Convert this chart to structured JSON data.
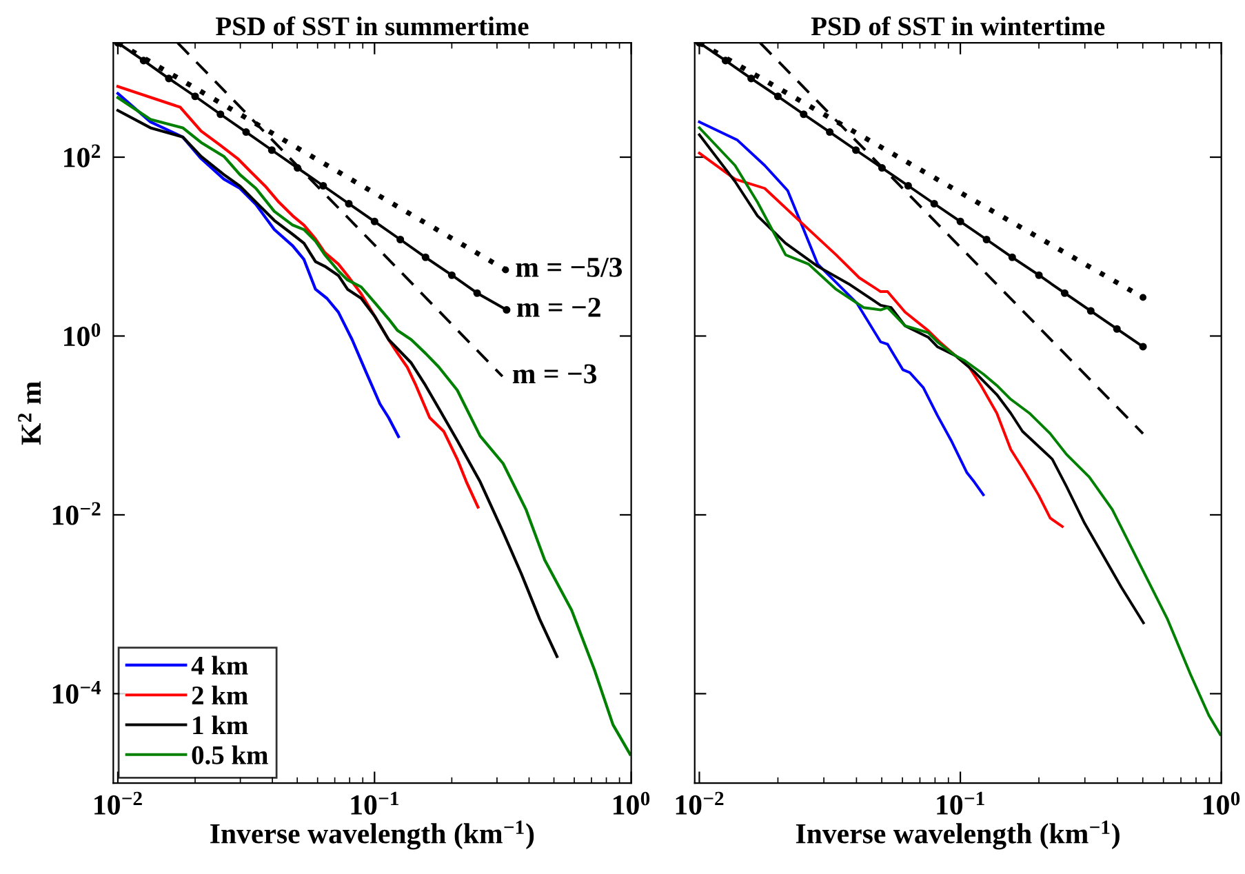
{
  "chart_data": [
    {
      "type": "line",
      "title": "PSD of SST in summertime",
      "xlabel": "Inverse wavelength (km$^{−1}$)",
      "ylabel": "K$^{2}$ m",
      "log": "xy",
      "legend": "bottom left",
      "xlim": [
        0.0096,
        1
      ],
      "ylim": [
        1e-05,
        1900
      ],
      "xticks": [
        {
          "value": 0.01,
          "label": "10$^{−2}$"
        },
        {
          "value": 0.1,
          "label": "10$^{−1}$"
        },
        {
          "value": 1,
          "label": "10$^{0}$"
        }
      ],
      "yticks": [
        {
          "value": 0.0001,
          "label": "10$^{−4}$"
        },
        {
          "value": 0.01,
          "label": "10$^{−2}$"
        },
        {
          "value": 1,
          "label": "10$^{0}$"
        },
        {
          "value": 100,
          "label": "10$^{2}$"
        }
      ],
      "annotations": [
        {
          "text": "m = −5/3",
          "x": 0.324,
          "y": 5.5
        },
        {
          "text": "m = −2",
          "x": 0.327,
          "y": 1.96
        },
        {
          "text": "m = −3",
          "x": 0.315,
          "y": 0.354
        }
      ],
      "series": [
        {
          "name": "4 km",
          "color": "#0000ff",
          "x": [
            0.01,
            0.0134,
            0.0179,
            0.0211,
            0.0259,
            0.0299,
            0.0345,
            0.0407,
            0.048,
            0.0531,
            0.0589,
            0.0653,
            0.0723,
            0.0818,
            0.0925,
            0.105,
            0.1135,
            0.124
          ],
          "values": [
            516,
            248,
            168,
            96.5,
            56.8,
            44.8,
            29.6,
            15.5,
            10.2,
            7.18,
            3.33,
            2.63,
            1.85,
            0.91,
            0.4,
            0.174,
            0.122,
            0.075
          ]
        },
        {
          "name": "2 km",
          "color": "#ff0000",
          "x": [
            0.01,
            0.0175,
            0.0211,
            0.0249,
            0.0293,
            0.0331,
            0.0375,
            0.0424,
            0.048,
            0.0531,
            0.0589,
            0.064,
            0.0723,
            0.0785,
            0.0887,
            0.1005,
            0.1135,
            0.123,
            0.134,
            0.145,
            0.164,
            0.186,
            0.21,
            0.228,
            0.253
          ],
          "values": [
            617,
            362,
            196,
            138,
            96.5,
            67.8,
            47.5,
            31.4,
            22.1,
            17.4,
            12.2,
            8.57,
            6.38,
            4.75,
            2.96,
            1.64,
            0.91,
            0.64,
            0.45,
            0.28,
            0.122,
            0.086,
            0.042,
            0.0234,
            0.0122
          ]
        },
        {
          "name": "1 km",
          "color": "#000000",
          "x": [
            0.01,
            0.0134,
            0.0179,
            0.0211,
            0.0259,
            0.0299,
            0.0345,
            0.0407,
            0.048,
            0.0531,
            0.0589,
            0.064,
            0.0723,
            0.0785,
            0.0887,
            0.1005,
            0.1135,
            0.123,
            0.139,
            0.158,
            0.178,
            0.21,
            0.258,
            0.317,
            0.373,
            0.44,
            0.514
          ],
          "values": [
            333,
            213,
            168,
            102,
            63.8,
            47.5,
            31.4,
            19.6,
            13.7,
            10.9,
            6.78,
            6.02,
            4.75,
            3.33,
            2.64,
            1.64,
            0.91,
            0.72,
            0.5,
            0.28,
            0.155,
            0.068,
            0.0234,
            0.0064,
            0.0022,
            0.00068,
            0.00026
          ]
        },
        {
          "name": "0.5 km",
          "color": "#008000",
          "x": [
            0.01,
            0.0134,
            0.0179,
            0.0211,
            0.0259,
            0.0299,
            0.0345,
            0.0407,
            0.048,
            0.0531,
            0.0589,
            0.064,
            0.0723,
            0.0785,
            0.0887,
            0.1005,
            0.1135,
            0.123,
            0.139,
            0.158,
            0.178,
            0.21,
            0.258,
            0.317,
            0.389,
            0.46,
            0.586,
            0.719,
            0.849,
            0.99
          ],
          "values": [
            464,
            264,
            213,
            146,
            102,
            63.8,
            44.8,
            24.8,
            17.4,
            15.5,
            11.5,
            8.09,
            5.35,
            4.23,
            3.54,
            2.34,
            1.55,
            1.15,
            0.91,
            0.64,
            0.45,
            0.248,
            0.076,
            0.0375,
            0.0115,
            0.00314,
            0.00086,
            0.000185,
            4.5e-05,
            2.1e-05
          ]
        },
        {
          "color": "#000000",
          "line_style": "dotted",
          "marker": "circle",
          "x": [
            0.01,
            0.324
          ],
          "values": [
            1900,
            5.5
          ]
        },
        {
          "color": "#000000",
          "marker": "circle",
          "x": [
            0.01,
            0.0126,
            0.0158,
            0.02,
            0.0251,
            0.0316,
            0.0398,
            0.0501,
            0.0631,
            0.0794,
            0.1,
            0.126,
            0.158,
            0.2,
            0.251,
            0.327
          ],
          "values": [
            1900,
            1202,
            759,
            479,
            302,
            191,
            120,
            75.9,
            47.9,
            30.2,
            19.1,
            12.0,
            7.59,
            4.79,
            3.02,
            1.96
          ]
        },
        {
          "color": "#000000",
          "line_style": "dashed",
          "x": [
            0.0171,
            0.315
          ],
          "values": [
            1900,
            0.354
          ]
        }
      ]
    },
    {
      "type": "line",
      "title": "PSD of SST in wintertime",
      "xlabel": "Inverse wavelength (km$^{−1}$)",
      "log": "xy",
      "tick_labels": "x",
      "xlim": [
        0.0096,
        1
      ],
      "ylim": [
        1e-05,
        1900
      ],
      "xticks": [
        {
          "value": 0.01,
          "label": "10$^{−2}$"
        },
        {
          "value": 0.1,
          "label": "10$^{−1}$"
        },
        {
          "value": 1,
          "label": "10$^{0}$"
        }
      ],
      "yticks": [
        0.0001,
        0.01,
        1,
        100
      ],
      "series": [
        {
          "color": "#0000ff",
          "x": [
            0.01,
            0.014,
            0.0178,
            0.0218,
            0.0251,
            0.0284,
            0.0334,
            0.0401,
            0.0495,
            0.0526,
            0.0602,
            0.064,
            0.0722,
            0.0816,
            0.0922,
            0.106,
            0.113,
            0.1225
          ],
          "values": [
            248,
            155,
            80.9,
            42.3,
            15.5,
            6.38,
            3.98,
            2.34,
            0.86,
            0.81,
            0.42,
            0.39,
            0.264,
            0.13,
            0.068,
            0.0296,
            0.0234,
            0.0168
          ]
        },
        {
          "color": "#ff0000",
          "x": [
            0.01,
            0.0137,
            0.0178,
            0.0241,
            0.0334,
            0.041,
            0.0495,
            0.0526,
            0.0614,
            0.0753,
            0.0833,
            0.096,
            0.108,
            0.12,
            0.138,
            0.156,
            0.177,
            0.1995,
            0.221,
            0.246
          ],
          "values": [
            111,
            56.8,
            44.8,
            19.6,
            8.09,
            4.48,
            3.14,
            3.14,
            1.85,
            1.15,
            0.86,
            0.6,
            0.45,
            0.28,
            0.137,
            0.054,
            0.03,
            0.0166,
            0.0092,
            0.0074
          ]
        },
        {
          "color": "#000000",
          "x": [
            0.01,
            0.0137,
            0.0167,
            0.0214,
            0.0284,
            0.0378,
            0.0495,
            0.0543,
            0.0614,
            0.0753,
            0.0816,
            0.096,
            0.113,
            0.138,
            0.156,
            0.173,
            0.225,
            0.255,
            0.299,
            0.352,
            0.414,
            0.503
          ],
          "values": [
            178,
            53.5,
            22.1,
            10.9,
            6.02,
            3.75,
            2.21,
            2.08,
            1.3,
            0.97,
            0.76,
            0.6,
            0.4,
            0.221,
            0.137,
            0.086,
            0.042,
            0.0208,
            0.0081,
            0.00354,
            0.00155,
            0.00062
          ]
        },
        {
          "color": "#008000",
          "x": [
            0.01,
            0.0137,
            0.0167,
            0.0214,
            0.0262,
            0.0334,
            0.0426,
            0.0495,
            0.0526,
            0.0614,
            0.0753,
            0.0816,
            0.096,
            0.104,
            0.1225,
            0.138,
            0.156,
            0.184,
            0.221,
            0.255,
            0.312,
            0.382,
            0.487,
            0.622,
            0.762,
            0.896,
            0.99
          ],
          "values": [
            213,
            80.9,
            31.4,
            8.09,
            6.38,
            3.33,
            2.08,
            1.96,
            2.08,
            1.3,
            1.09,
            0.86,
            0.6,
            0.53,
            0.375,
            0.28,
            0.196,
            0.137,
            0.081,
            0.0475,
            0.0264,
            0.0115,
            0.0028,
            0.00068,
            0.000164,
            5.7e-05,
            3.5e-05
          ]
        },
        {
          "color": "#000000",
          "line_style": "dotted",
          "marker": "circle",
          "x": [
            0.01,
            0.501
          ],
          "values": [
            1900,
            2.7
          ]
        },
        {
          "color": "#000000",
          "marker": "circle",
          "x": [
            0.01,
            0.0126,
            0.0158,
            0.02,
            0.0251,
            0.0316,
            0.0398,
            0.0501,
            0.0631,
            0.0794,
            0.1,
            0.126,
            0.158,
            0.2,
            0.251,
            0.316,
            0.398,
            0.501
          ],
          "values": [
            1900,
            1202,
            759,
            479,
            302,
            191,
            120,
            75.9,
            47.9,
            30.2,
            19.1,
            12.0,
            7.59,
            4.79,
            3.02,
            1.91,
            1.2,
            0.76
          ]
        },
        {
          "color": "#000000",
          "line_style": "dashed",
          "x": [
            0.0171,
            0.501
          ],
          "values": [
            1900,
            0.081
          ]
        }
      ]
    }
  ]
}
